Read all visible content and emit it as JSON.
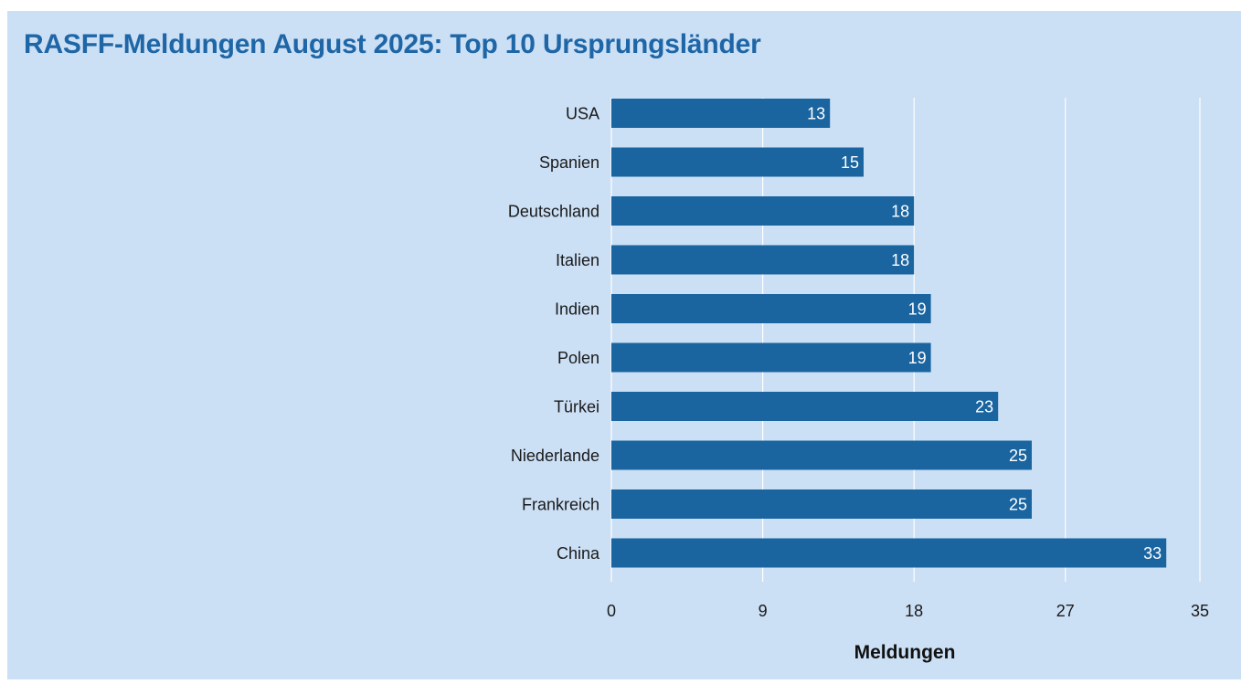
{
  "chart_data": {
    "type": "bar",
    "orientation": "horizontal",
    "title": "RASFF-Meldungen August 2025: Top 10 Ursprungsländer",
    "xlabel": "Meldungen",
    "ylabel": "",
    "categories": [
      "USA",
      "Spanien",
      "Deutschland",
      "Italien",
      "Indien",
      "Polen",
      "Türkei",
      "Niederlande",
      "Frankreich",
      "China"
    ],
    "values": [
      13,
      15,
      18,
      18,
      19,
      19,
      23,
      25,
      25,
      33
    ],
    "xlim": [
      0,
      35
    ],
    "xticks": [
      0,
      9,
      18,
      27,
      35
    ],
    "grid": true,
    "data_labels": true
  },
  "colors": {
    "background": "#cbdff5",
    "bar": "#1a64a0",
    "title": "#1e66a6",
    "grid": "#ffffff"
  }
}
